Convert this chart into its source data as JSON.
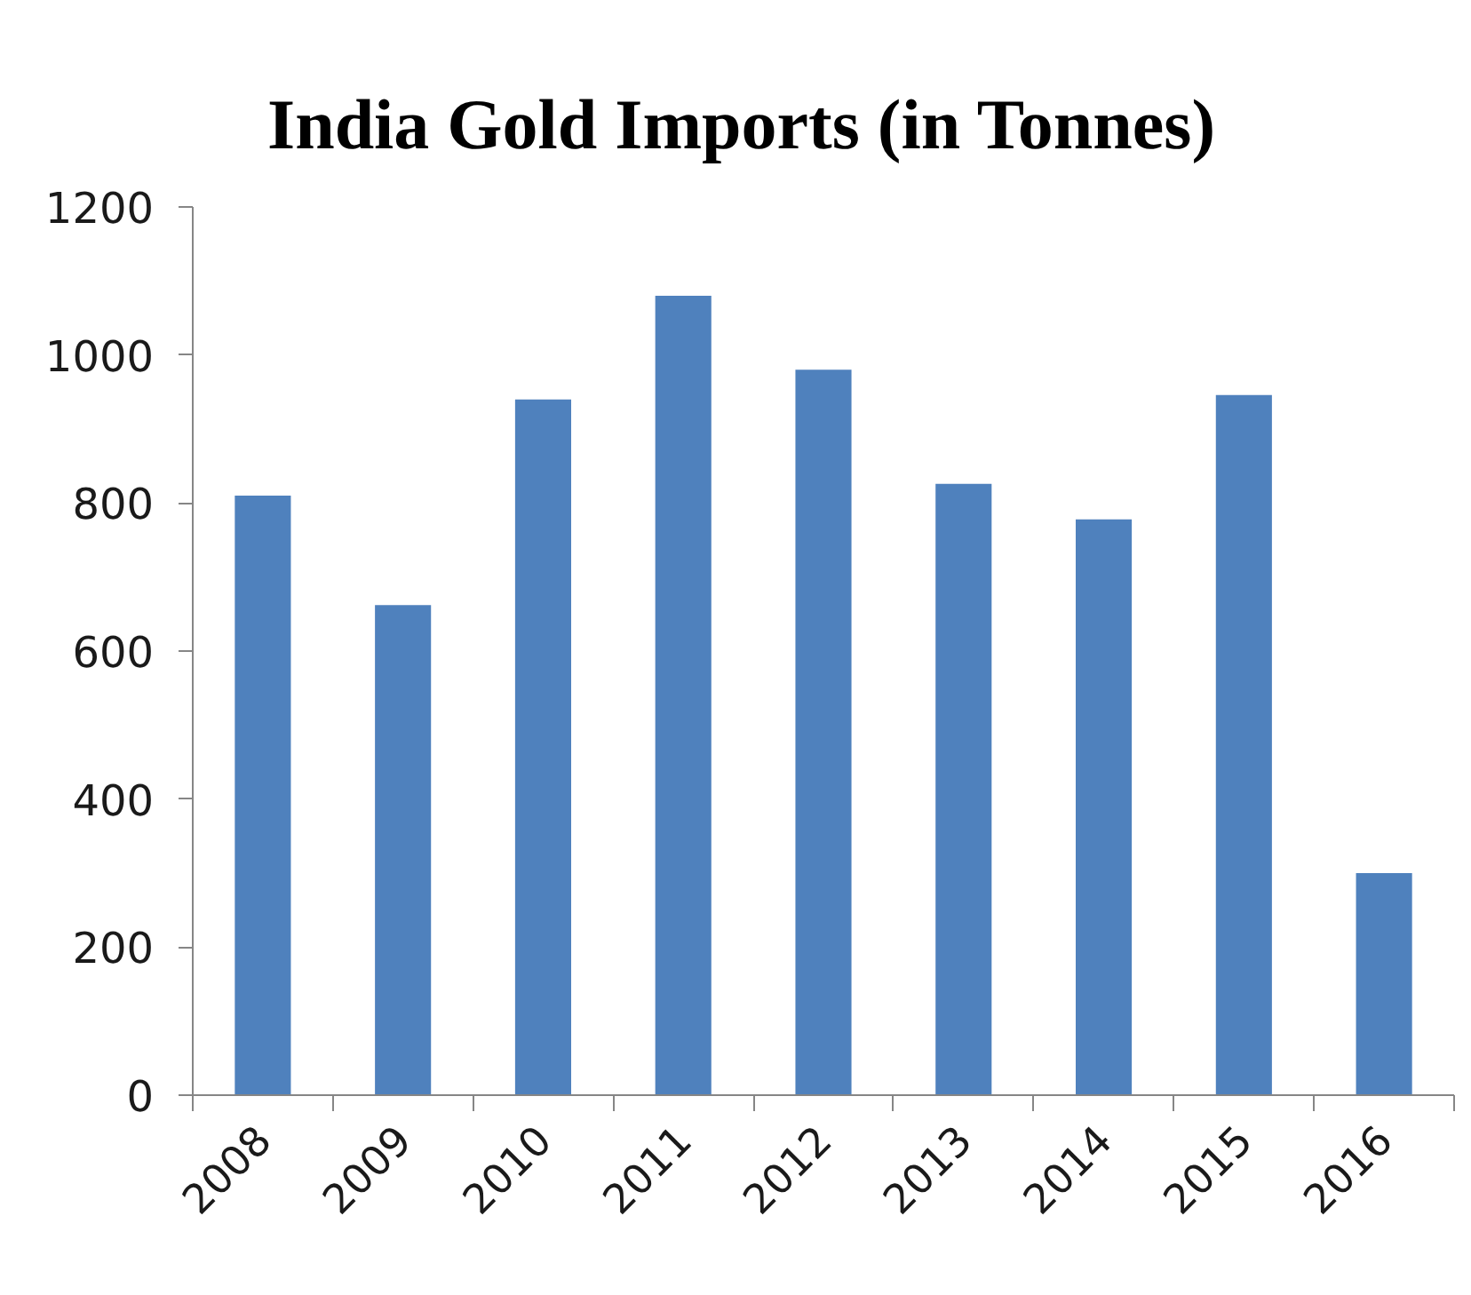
{
  "chart_data": {
    "type": "bar",
    "title": "India Gold Imports (in Tonnes)",
    "categories": [
      "2008",
      "2009",
      "2010",
      "2011",
      "2012",
      "2013",
      "2014",
      "2015",
      "2016"
    ],
    "values": [
      810,
      662,
      940,
      1080,
      980,
      826,
      778,
      946,
      300
    ],
    "color": "#4f81bd",
    "ylim": [
      0,
      1200
    ],
    "yticks": [
      0,
      200,
      400,
      600,
      800,
      1000,
      1200
    ],
    "grid": false
  }
}
